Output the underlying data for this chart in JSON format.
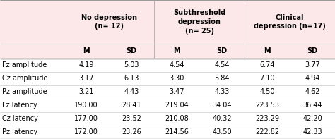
{
  "col_headers": [
    "No depression\n(n= 12)",
    "Subthreshold\ndepression\n(n= 25)",
    "Clinical\ndepression (n=17)"
  ],
  "sub_headers": [
    "M",
    "SD",
    "M",
    "SD",
    "M",
    "SD"
  ],
  "row_labels": [
    "Fz amplitude",
    "Cz amplitude",
    "Pz amplitude",
    "Fz latency",
    "Cz latency",
    "Pz latency"
  ],
  "data": [
    [
      "4.19",
      "5.03",
      "4.54",
      "4.54",
      "6.74",
      "3.77"
    ],
    [
      "3.17",
      "6.13",
      "3.30",
      "5.84",
      "7.10",
      "4.94"
    ],
    [
      "3.21",
      "4.43",
      "3.47",
      "4.33",
      "4.50",
      "4.62"
    ],
    [
      "190.00",
      "28.41",
      "219.04",
      "34.04",
      "223.53",
      "36.44"
    ],
    [
      "177.00",
      "23.52",
      "210.08",
      "40.32",
      "223.29",
      "42.20"
    ],
    [
      "172.00",
      "23.26",
      "214.56",
      "43.50",
      "222.82",
      "42.33"
    ]
  ],
  "header_bg": "#fce8e8",
  "text_color": "#000000",
  "font_size": 7.0,
  "header_font_size": 7.0,
  "fig_width": 4.74,
  "fig_height": 1.97,
  "dpi": 100
}
